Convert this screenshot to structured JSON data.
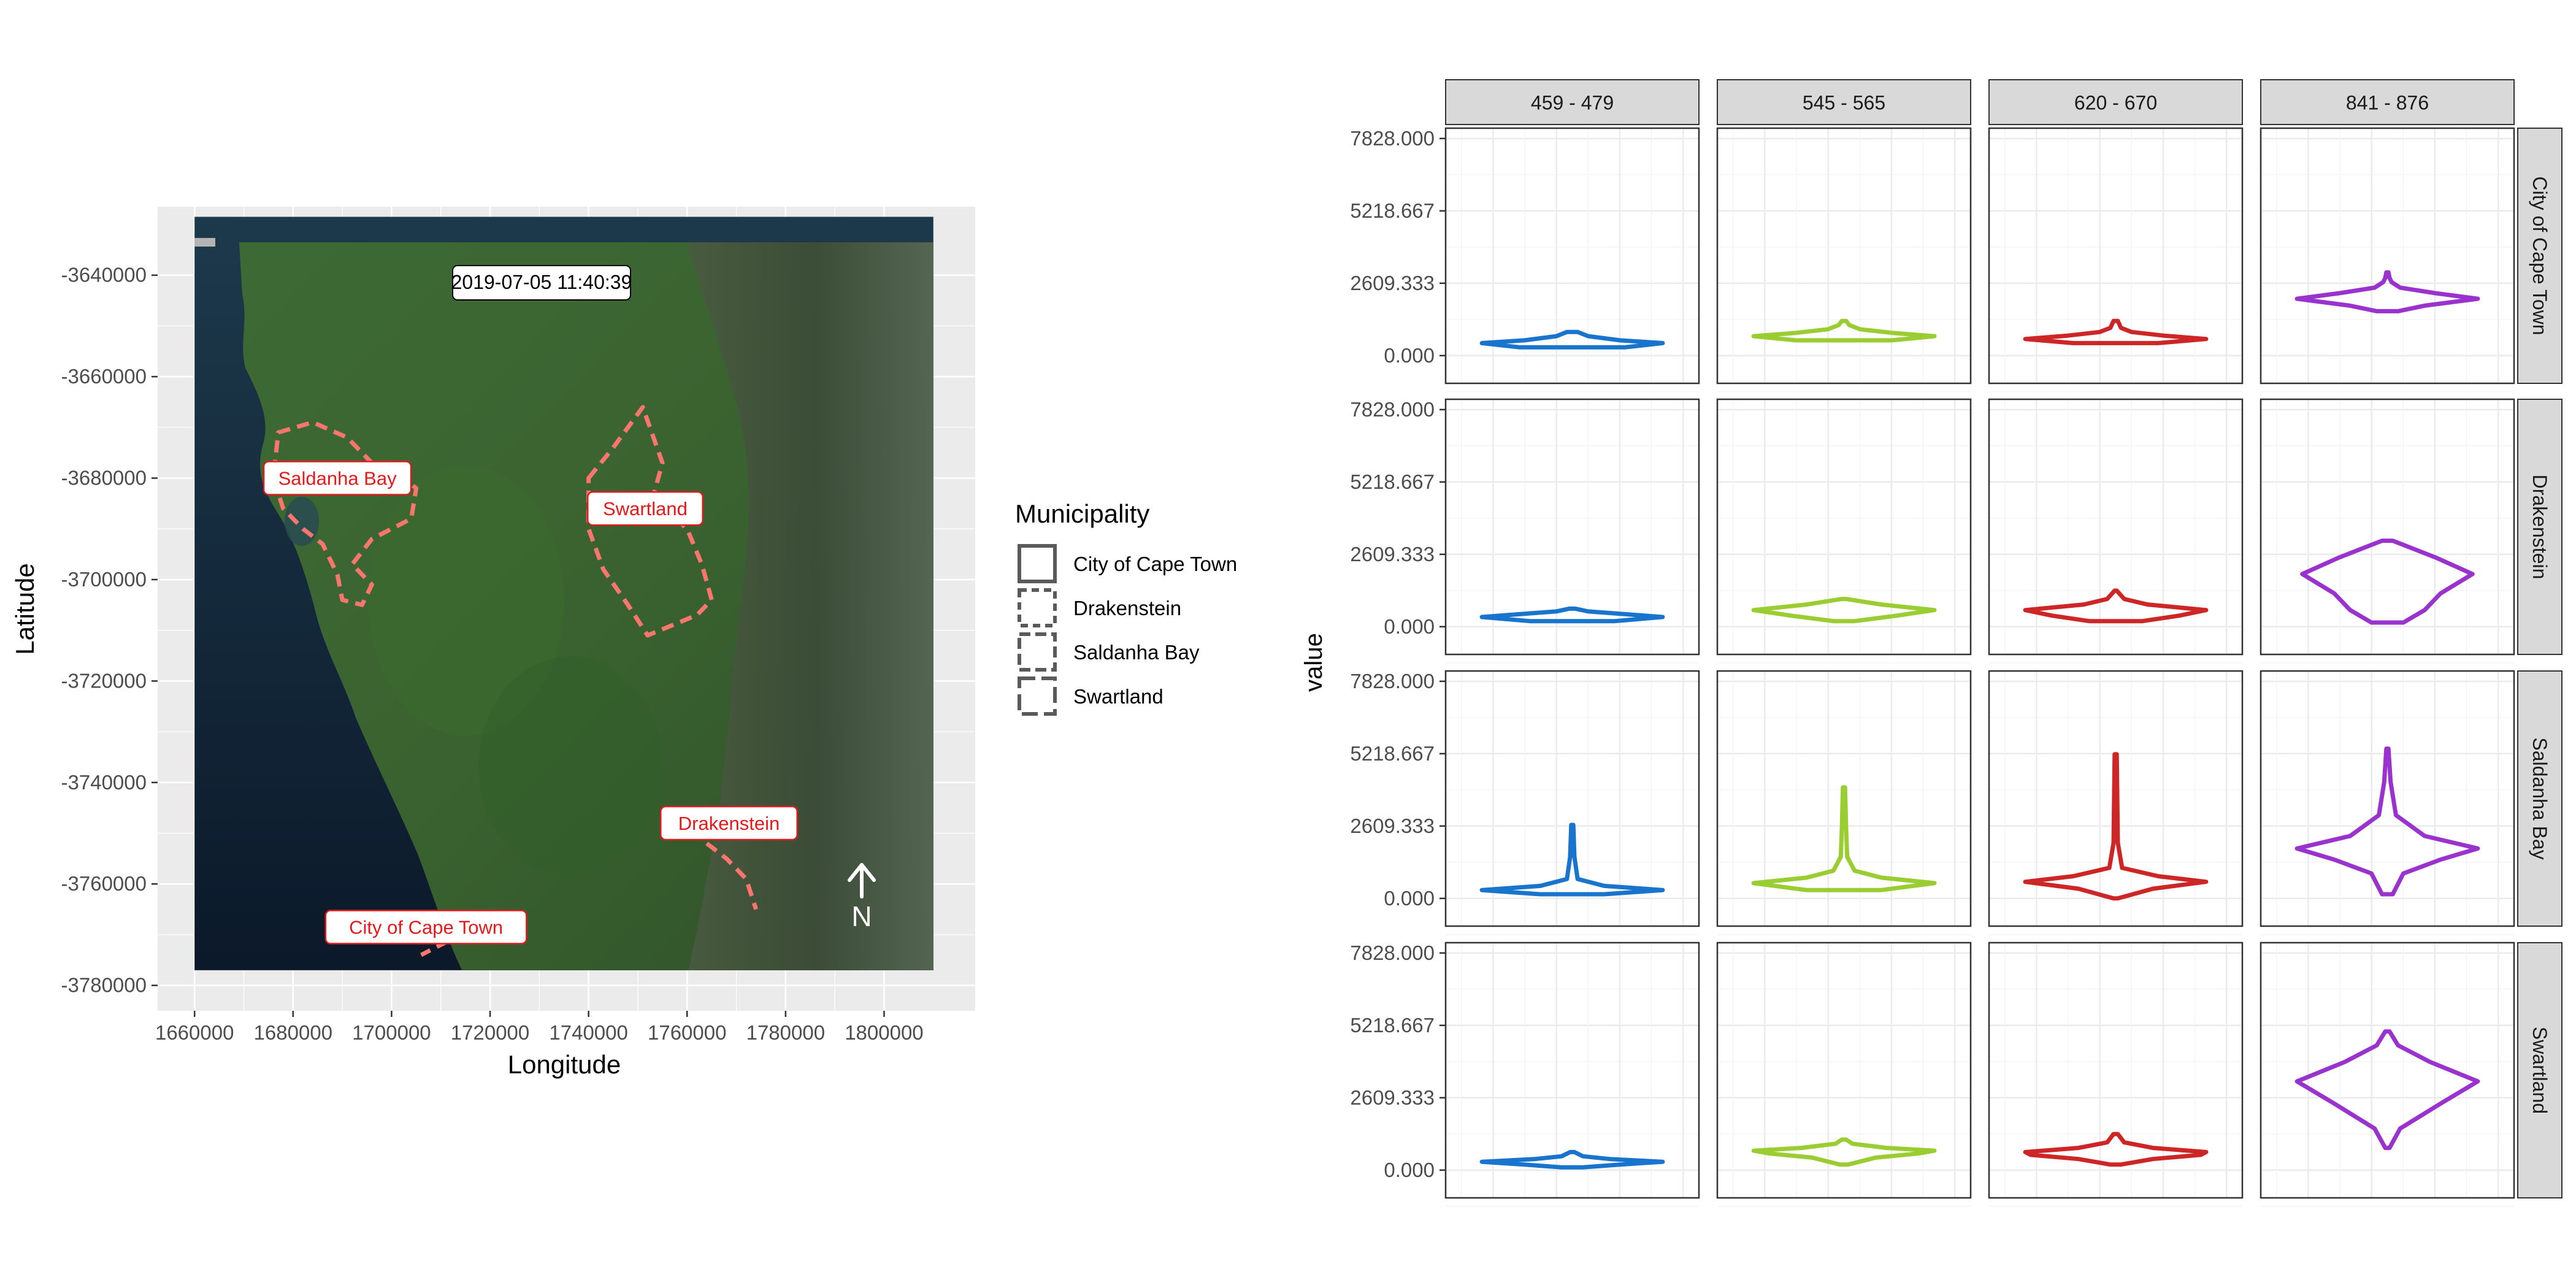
{
  "chart_data": [
    {
      "type": "map",
      "timestamp": "2019-07-05 11:40:39",
      "xlabel": "Longitude",
      "ylabel": "Latitude",
      "xticks": [
        "1660000",
        "1680000",
        "1700000",
        "1720000",
        "1740000",
        "1760000",
        "1780000",
        "1800000"
      ],
      "yticks": [
        "-3640000",
        "-3660000",
        "-3680000",
        "-3700000",
        "-3720000",
        "-3740000",
        "-3760000",
        "-3780000"
      ],
      "xlim": [
        1652500,
        1818500
      ],
      "ylim": [
        -3785000,
        -3626500
      ],
      "raster_extent": {
        "x": [
          1660000,
          1810000
        ],
        "y": [
          -3777000,
          -3628500
        ]
      },
      "legend": {
        "title": "Municipality",
        "position": "right",
        "items": [
          "City of Cape Town",
          "Drakenstein",
          "Saldanha Bay",
          "Swartland"
        ]
      },
      "regions": [
        {
          "name": "Saldanha Bay",
          "label_at": [
            1689000,
            -3680000
          ],
          "outline": [
            [
              1677000,
              -3671000
            ],
            [
              1684000,
              -3669000
            ],
            [
              1691000,
              -3672000
            ],
            [
              1696000,
              -3677000
            ],
            [
              1700000,
              -3678000
            ],
            [
              1705000,
              -3682000
            ],
            [
              1704000,
              -3688000
            ],
            [
              1696000,
              -3692000
            ],
            [
              1692000,
              -3697000
            ],
            [
              1696000,
              -3701000
            ],
            [
              1694000,
              -3705000
            ],
            [
              1690000,
              -3704000
            ],
            [
              1689000,
              -3699000
            ],
            [
              1686000,
              -3693000
            ],
            [
              1682000,
              -3690000
            ],
            [
              1678000,
              -3686000
            ],
            [
              1676000,
              -3680000
            ]
          ]
        },
        {
          "name": "Swartland",
          "label_at": [
            1751500,
            -3686000
          ],
          "outline": [
            [
              1740000,
              -3680000
            ],
            [
              1745000,
              -3674000
            ],
            [
              1751000,
              -3666000
            ],
            [
              1755000,
              -3677000
            ],
            [
              1753000,
              -3684000
            ],
            [
              1760000,
              -3690000
            ],
            [
              1763000,
              -3697000
            ],
            [
              1765000,
              -3704000
            ],
            [
              1762000,
              -3707000
            ],
            [
              1757000,
              -3709000
            ],
            [
              1752000,
              -3711000
            ],
            [
              1748000,
              -3705000
            ],
            [
              1743000,
              -3698000
            ],
            [
              1740000,
              -3690000
            ]
          ]
        },
        {
          "name": "Drakenstein",
          "label_at": [
            1768500,
            -3748000
          ],
          "outline": [
            [
              1764000,
              -3752000
            ],
            [
              1768000,
              -3755000
            ],
            [
              1772000,
              -3759000
            ],
            [
              1774000,
              -3765000
            ]
          ]
        },
        {
          "name": "City of Cape Town",
          "label_at": [
            1707000,
            -3768500
          ],
          "outline": [
            [
              1702000,
              -3770000
            ],
            [
              1707000,
              -3768000
            ],
            [
              1712000,
              -3771000
            ],
            [
              1706000,
              -3774000
            ]
          ]
        }
      ],
      "north_arrow": "N"
    },
    {
      "type": "violin",
      "ylabel": "value",
      "yticks": [
        "0.000",
        "2609.333",
        "5218.667",
        "7828.000"
      ],
      "ylim": [
        -1000,
        8200
      ],
      "columns": [
        "459 - 479",
        "545 - 565",
        "620 - 670",
        "841 - 876"
      ],
      "rows": [
        "City of Cape Town",
        "Drakenstein",
        "Saldanha Bay",
        "Swartland"
      ],
      "colors": [
        "#1874CD",
        "#9ACD32",
        "#CD2626",
        "#9A32CD"
      ],
      "panels": [
        [
          {
            "min": 300,
            "max": 850,
            "widths": [
              [
                300,
                0.5
              ],
              [
                450,
                0.85
              ],
              [
                550,
                0.45
              ],
              [
                700,
                0.15
              ],
              [
                850,
                0.05
              ]
            ]
          },
          {
            "min": 550,
            "max": 1250,
            "widths": [
              [
                550,
                0.45
              ],
              [
                700,
                0.85
              ],
              [
                820,
                0.45
              ],
              [
                950,
                0.15
              ],
              [
                1100,
                0.05
              ],
              [
                1250,
                0.02
              ]
            ]
          },
          {
            "min": 450,
            "max": 1250,
            "widths": [
              [
                450,
                0.4
              ],
              [
                600,
                0.85
              ],
              [
                720,
                0.45
              ],
              [
                850,
                0.15
              ],
              [
                1000,
                0.05
              ],
              [
                1250,
                0.02
              ]
            ]
          },
          {
            "min": 1600,
            "max": 3000,
            "widths": [
              [
                1600,
                0.1
              ],
              [
                1800,
                0.35
              ],
              [
                2050,
                0.85
              ],
              [
                2250,
                0.45
              ],
              [
                2450,
                0.12
              ],
              [
                2650,
                0.04
              ],
              [
                2800,
                0.02
              ],
              [
                3000,
                0.01
              ]
            ]
          }
        ],
        [
          {
            "min": 200,
            "max": 650,
            "widths": [
              [
                200,
                0.4
              ],
              [
                350,
                0.85
              ],
              [
                450,
                0.5
              ],
              [
                550,
                0.15
              ],
              [
                650,
                0.03
              ]
            ]
          },
          {
            "min": 200,
            "max": 1000,
            "widths": [
              [
                200,
                0.1
              ],
              [
                400,
                0.5
              ],
              [
                600,
                0.85
              ],
              [
                800,
                0.35
              ],
              [
                1000,
                0.02
              ]
            ]
          },
          {
            "min": 200,
            "max": 1300,
            "widths": [
              [
                200,
                0.25
              ],
              [
                400,
                0.6
              ],
              [
                600,
                0.85
              ],
              [
                800,
                0.3
              ],
              [
                1000,
                0.08
              ],
              [
                1300,
                0.01
              ]
            ]
          },
          {
            "min": 150,
            "max": 3100,
            "widths": [
              [
                150,
                0.15
              ],
              [
                600,
                0.35
              ],
              [
                1200,
                0.5
              ],
              [
                1900,
                0.8
              ],
              [
                2500,
                0.45
              ],
              [
                3100,
                0.05
              ]
            ]
          }
        ],
        [
          {
            "min": 150,
            "max": 2650,
            "widths": [
              [
                150,
                0.3
              ],
              [
                300,
                0.85
              ],
              [
                450,
                0.3
              ],
              [
                700,
                0.05
              ],
              [
                1500,
                0.02
              ],
              [
                2650,
                0.01
              ]
            ]
          },
          {
            "min": 300,
            "max": 4000,
            "widths": [
              [
                300,
                0.35
              ],
              [
                550,
                0.85
              ],
              [
                750,
                0.35
              ],
              [
                1000,
                0.1
              ],
              [
                1500,
                0.03
              ],
              [
                2500,
                0.02
              ],
              [
                4000,
                0.01
              ]
            ]
          },
          {
            "min": 0,
            "max": 5200,
            "widths": [
              [
                0,
                0.02
              ],
              [
                350,
                0.35
              ],
              [
                600,
                0.85
              ],
              [
                800,
                0.4
              ],
              [
                1100,
                0.06
              ],
              [
                2000,
                0.02
              ],
              [
                5200,
                0.01
              ]
            ]
          },
          {
            "min": 150,
            "max": 5400,
            "widths": [
              [
                150,
                0.05
              ],
              [
                900,
                0.15
              ],
              [
                1400,
                0.5
              ],
              [
                1800,
                0.85
              ],
              [
                2250,
                0.35
              ],
              [
                3000,
                0.08
              ],
              [
                4200,
                0.03
              ],
              [
                5400,
                0.01
              ]
            ]
          }
        ],
        [
          {
            "min": 100,
            "max": 650,
            "widths": [
              [
                100,
                0.1
              ],
              [
                200,
                0.45
              ],
              [
                300,
                0.85
              ],
              [
                400,
                0.35
              ],
              [
                500,
                0.1
              ],
              [
                650,
                0.02
              ]
            ]
          },
          {
            "min": 200,
            "max": 1100,
            "widths": [
              [
                200,
                0.04
              ],
              [
                450,
                0.3
              ],
              [
                600,
                0.7
              ],
              [
                700,
                0.85
              ],
              [
                800,
                0.4
              ],
              [
                950,
                0.08
              ],
              [
                1100,
                0.02
              ]
            ]
          },
          {
            "min": 200,
            "max": 1300,
            "widths": [
              [
                200,
                0.05
              ],
              [
                400,
                0.35
              ],
              [
                550,
                0.8
              ],
              [
                650,
                0.85
              ],
              [
                800,
                0.35
              ],
              [
                1000,
                0.08
              ],
              [
                1300,
                0.02
              ]
            ]
          },
          {
            "min": 800,
            "max": 5000,
            "widths": [
              [
                800,
                0.02
              ],
              [
                1500,
                0.12
              ],
              [
                2400,
                0.5
              ],
              [
                3200,
                0.85
              ],
              [
                3900,
                0.4
              ],
              [
                4500,
                0.1
              ],
              [
                5000,
                0.02
              ]
            ]
          }
        ]
      ]
    }
  ]
}
